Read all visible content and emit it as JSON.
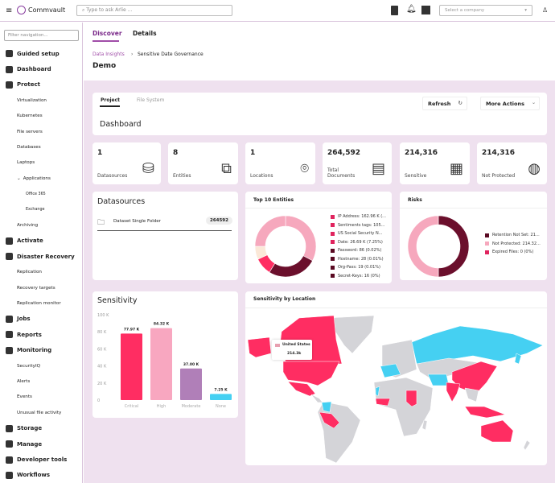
{
  "app": {
    "name": "Commvault",
    "search_placeholder": "Type to ask Arlie ...",
    "company_placeholder": "Select a company"
  },
  "sidebar": {
    "filter_placeholder": "Filter navigation...",
    "items": [
      {
        "label": "Guided setup",
        "level": 1
      },
      {
        "label": "Dashboard",
        "level": 1
      },
      {
        "label": "Protect",
        "level": 1
      },
      {
        "label": "Virtualization",
        "level": 2
      },
      {
        "label": "Kubernetes",
        "level": 2
      },
      {
        "label": "File servers",
        "level": 2
      },
      {
        "label": "Databases",
        "level": 2
      },
      {
        "label": "Laptops",
        "level": 2
      },
      {
        "label": "Applications",
        "level": 2
      },
      {
        "label": "Office 365",
        "level": 3
      },
      {
        "label": "Exchange",
        "level": 3
      },
      {
        "label": "Archiving",
        "level": 2
      },
      {
        "label": "Activate",
        "level": 1
      },
      {
        "label": "Disaster Recovery",
        "level": 1
      },
      {
        "label": "Replication",
        "level": 2
      },
      {
        "label": "Recovery targets",
        "level": 2
      },
      {
        "label": "Replication monitor",
        "level": 2
      },
      {
        "label": "Jobs",
        "level": 1
      },
      {
        "label": "Reports",
        "level": 1
      },
      {
        "label": "Monitoring",
        "level": 1
      },
      {
        "label": "SecurityIQ",
        "level": 2
      },
      {
        "label": "Alerts",
        "level": 2
      },
      {
        "label": "Events",
        "level": 2
      },
      {
        "label": "Unusual file activity",
        "level": 2
      },
      {
        "label": "Storage",
        "level": 1
      },
      {
        "label": "Manage",
        "level": 1
      },
      {
        "label": "Developer tools",
        "level": 1
      },
      {
        "label": "Workflows",
        "level": 1
      }
    ]
  },
  "header": {
    "tabs": [
      "Discover",
      "Details"
    ],
    "active_tab": "Discover",
    "breadcrumb": [
      "Data Insights",
      "Sensitive Date Governance"
    ],
    "title": "Demo"
  },
  "dashboard": {
    "tabs": [
      "Project",
      "File System"
    ],
    "active_tab": "Project",
    "title": "Dashboard",
    "refresh": "Refresh",
    "more_actions": "More Actions"
  },
  "stats": [
    {
      "value": "1",
      "label": "Datasources",
      "icon": "database-icon"
    },
    {
      "value": "8",
      "label": "Entities",
      "icon": "hierarchy-icon"
    },
    {
      "value": "1",
      "label": "Locations",
      "icon": "location-pin-icon"
    },
    {
      "value": "264,592",
      "label": "Total Documents",
      "icon": "documents-icon"
    },
    {
      "value": "214,316",
      "label": "Sensitive",
      "icon": "locked-file-icon"
    },
    {
      "value": "214,316",
      "label": "Not Protected",
      "icon": "globe-warning-icon"
    }
  ],
  "datasources": {
    "title": "Datasources",
    "items": [
      {
        "name": "Dataset Single Folder",
        "count": "264592"
      }
    ]
  },
  "top_entities": {
    "title": "Top  10 Entities",
    "legend": [
      {
        "label": "IP Address: 162.96 K (...",
        "color": "#e0245e"
      },
      {
        "label": "Sentiments tags: 105...",
        "color": "#e0245e"
      },
      {
        "label": "US Social Security N...",
        "color": "#e0245e"
      },
      {
        "label": "Date: 26.69 K (7.25%)",
        "color": "#e0245e"
      },
      {
        "label": "Password: 86 (0.02%)",
        "color": "#5a0a22"
      },
      {
        "label": "Hostname: 28 (0.01%)",
        "color": "#5a0a22"
      },
      {
        "label": "Org-Pass: 19 (0.01%)",
        "color": "#5a0a22"
      },
      {
        "label": "Secret-Keys: 16 (0%)",
        "color": "#5a0a22"
      }
    ]
  },
  "risks": {
    "title": "Risks",
    "legend": [
      {
        "label": "Retention Not Set: 21...",
        "color": "#5a0a22"
      },
      {
        "label": "Not Protected: 214.32...",
        "color": "#f6a8bd"
      },
      {
        "label": "Expired Files: 0 (0%)",
        "color": "#e0245e"
      }
    ]
  },
  "chart_data": {
    "type": "bar",
    "title": "Sensitivity",
    "categories": [
      "Critical",
      "High",
      "Moderate",
      "None"
    ],
    "values": [
      77970,
      84320,
      37000,
      7250
    ],
    "data_labels": [
      "77.97 K",
      "84.32 K",
      "37.00 K",
      "7.25 K"
    ],
    "colors": [
      "#ff2d62",
      "#f8a7c0",
      "#b07fb8",
      "#45d0f2"
    ],
    "yticks": [
      "100 K",
      "80 K",
      "60 K",
      "40 K",
      "20 K",
      "0"
    ],
    "ylim": [
      0,
      100000
    ]
  },
  "map": {
    "title": "Sensitivity by Location",
    "tooltip": {
      "country": "United States",
      "value": "214.3k"
    },
    "colors": {
      "high": "#ff2d62",
      "low": "#45d0f2",
      "none": "#d4d4d8"
    }
  }
}
